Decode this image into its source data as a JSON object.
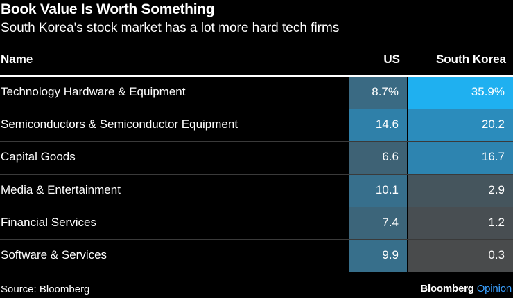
{
  "chart_data": {
    "type": "table",
    "title": "Book Value Is Worth Something",
    "subtitle": "South Korea's stock market has a lot more hard tech firms",
    "columns": [
      "Name",
      "US",
      "South Korea"
    ],
    "rows": [
      {
        "name": "Technology Hardware & Equipment",
        "us": 8.7,
        "us_label": "8.7%",
        "kr": 35.9,
        "kr_label": "35.9%"
      },
      {
        "name": "Semiconductors & Semiconductor Equipment",
        "us": 14.6,
        "us_label": "14.6",
        "kr": 20.2,
        "kr_label": "20.2"
      },
      {
        "name": "Capital Goods",
        "us": 6.6,
        "us_label": "6.6",
        "kr": 16.7,
        "kr_label": "16.7"
      },
      {
        "name": "Media & Entertainment",
        "us": 10.1,
        "us_label": "10.1",
        "kr": 2.9,
        "kr_label": "2.9"
      },
      {
        "name": "Financial Services",
        "us": 7.4,
        "us_label": "7.4",
        "kr": 1.2,
        "kr_label": "1.2"
      },
      {
        "name": "Software & Services",
        "us": 9.9,
        "us_label": "9.9",
        "kr": 0.3,
        "kr_label": "0.3"
      }
    ],
    "color_scale": {
      "low": "#4a4a4a",
      "mid": "#2f7fa8",
      "high": "#1fb0f0"
    }
  },
  "footer": {
    "source": "Source: Bloomberg",
    "brand": "Bloomberg",
    "brand_suffix": "Opinion"
  }
}
